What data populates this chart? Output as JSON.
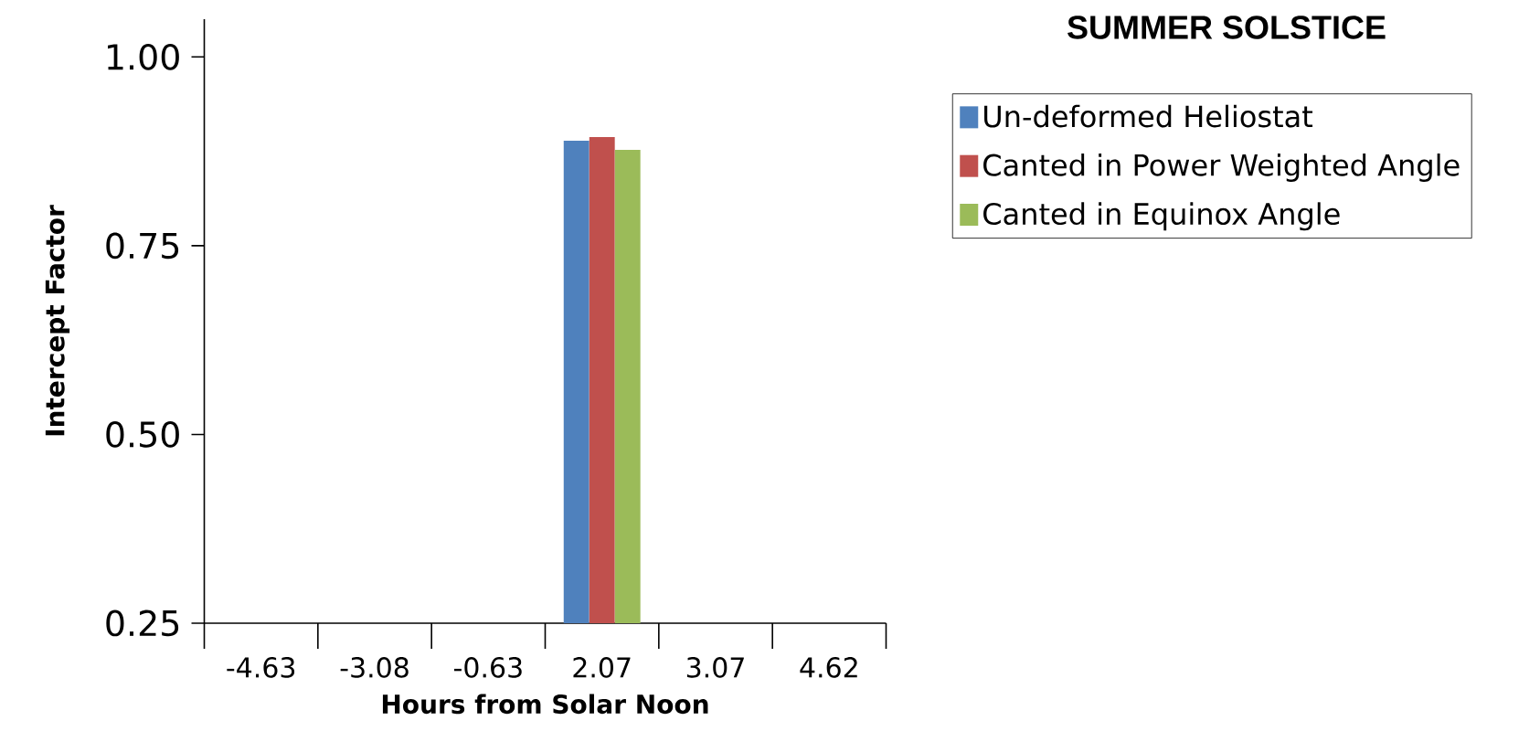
{
  "chart_data": {
    "type": "bar",
    "title": "SUMMER SOLSTICE",
    "xlabel": "Hours from Solar Noon",
    "ylabel": "Intercept Factor",
    "categories": [
      "-4.63",
      "-3.08",
      "-0.63",
      "2.07",
      "3.07",
      "4.62"
    ],
    "series": [
      {
        "name": "Un-deformed Heliostat",
        "color": "#4f81bd",
        "values": [
          null,
          null,
          null,
          0.889,
          null,
          null
        ]
      },
      {
        "name": "Canted in Power Weighted Angle",
        "color": "#c0504d",
        "values": [
          null,
          null,
          null,
          0.894,
          null,
          null
        ]
      },
      {
        "name": "Canted in Equinox Angle",
        "color": "#9bbb59",
        "values": [
          null,
          null,
          null,
          0.877,
          null,
          null
        ]
      }
    ],
    "ylim": [
      0.25,
      1.05
    ],
    "yticks": [
      {
        "value": 1.0,
        "label": "1.00"
      },
      {
        "value": 0.75,
        "label": "0.75"
      },
      {
        "value": 0.5,
        "label": "0.50"
      },
      {
        "value": 0.25,
        "label": "0.25"
      }
    ],
    "legend": "top right",
    "grid": false
  }
}
